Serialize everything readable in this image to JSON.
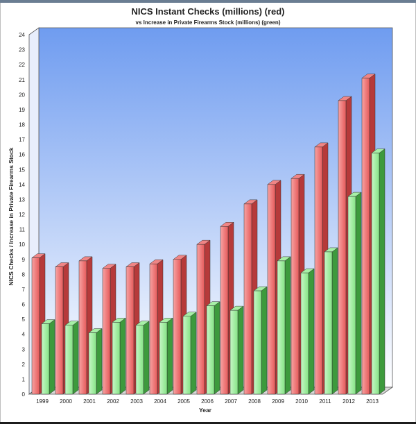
{
  "colors": {
    "red_front": "#e65a5a",
    "red_front_light": "#f7a3a3",
    "red_side": "#b63a3a",
    "red_top": "#f08585",
    "green_front": "#86e486",
    "green_front_light": "#c6f6c6",
    "green_side": "#3d9a3d",
    "green_top": "#a7f0a7",
    "bg_top": "#6f9cf0",
    "bg_bottom": "#ffffff"
  },
  "chart_data": {
    "type": "bar",
    "title": "NICS Instant Checks (millions) (red)",
    "subtitle": "vs Increase in Private Firearms Stock (millions) (green)",
    "xlabel": "Year",
    "ylabel": "NICS Checks / Increase in Private Firearms Stock",
    "ylim": [
      0,
      24
    ],
    "yticks": [
      0,
      1,
      2,
      3,
      4,
      5,
      6,
      7,
      8,
      9,
      10,
      11,
      12,
      13,
      14,
      15,
      16,
      17,
      18,
      19,
      20,
      21,
      22,
      23,
      24
    ],
    "categories": [
      "1999",
      "2000",
      "2001",
      "2002",
      "2003",
      "2004",
      "2005",
      "2006",
      "2007",
      "2008",
      "2009",
      "2010",
      "2011",
      "2012",
      "2013"
    ],
    "series": [
      {
        "name": "NICS Instant Checks (millions)",
        "color": "red",
        "values": [
          9.1,
          8.5,
          8.9,
          8.4,
          8.5,
          8.7,
          9.0,
          10.0,
          11.2,
          12.7,
          14.0,
          14.4,
          16.5,
          19.6,
          21.1
        ]
      },
      {
        "name": "Increase in Private Firearms Stock (millions)",
        "color": "green",
        "values": [
          4.7,
          4.6,
          4.1,
          4.8,
          4.6,
          4.8,
          5.2,
          5.9,
          5.6,
          6.9,
          8.9,
          8.1,
          9.5,
          13.2,
          16.1
        ]
      }
    ],
    "grid": false,
    "legend": "none"
  }
}
